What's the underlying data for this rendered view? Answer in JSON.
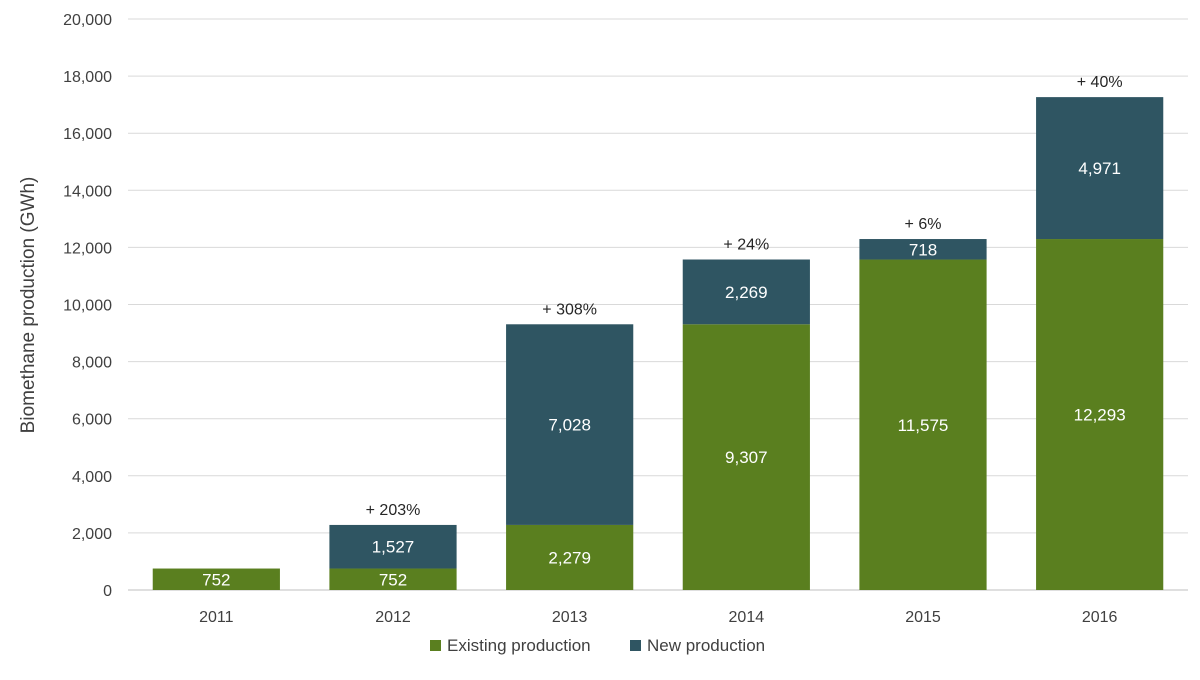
{
  "chart_data": {
    "type": "bar",
    "stacked": true,
    "title": "",
    "xlabel": "",
    "ylabel": "Biomethane production (GWh)",
    "ylim": [
      0,
      20000
    ],
    "yticks": [
      0,
      2000,
      4000,
      6000,
      8000,
      10000,
      12000,
      14000,
      16000,
      18000,
      20000
    ],
    "ytick_labels": [
      "0",
      "2,000",
      "4,000",
      "6,000",
      "8,000",
      "10,000",
      "12,000",
      "14,000",
      "16,000",
      "18,000",
      "20,000"
    ],
    "grid": true,
    "legend_position": "bottom",
    "categories": [
      "2011",
      "2012",
      "2013",
      "2014",
      "2015",
      "2016"
    ],
    "series": [
      {
        "name": "Existing production",
        "color": "#5a7f1f",
        "values": [
          752,
          752,
          2279,
          9307,
          11575,
          12293
        ],
        "labels": [
          "752",
          "752",
          "2,279",
          "9,307",
          "11,575",
          "12,293"
        ]
      },
      {
        "name": "New production",
        "color": "#2f5562",
        "values": [
          0,
          1527,
          7028,
          2269,
          718,
          4971
        ],
        "labels": [
          "",
          "1,527",
          "7,028",
          "2,269",
          "718",
          "4,971"
        ]
      }
    ],
    "annotations": [
      "",
      "+ 203%",
      "+ 308%",
      "+ 24%",
      "+ 6%",
      "+ 40%"
    ]
  }
}
